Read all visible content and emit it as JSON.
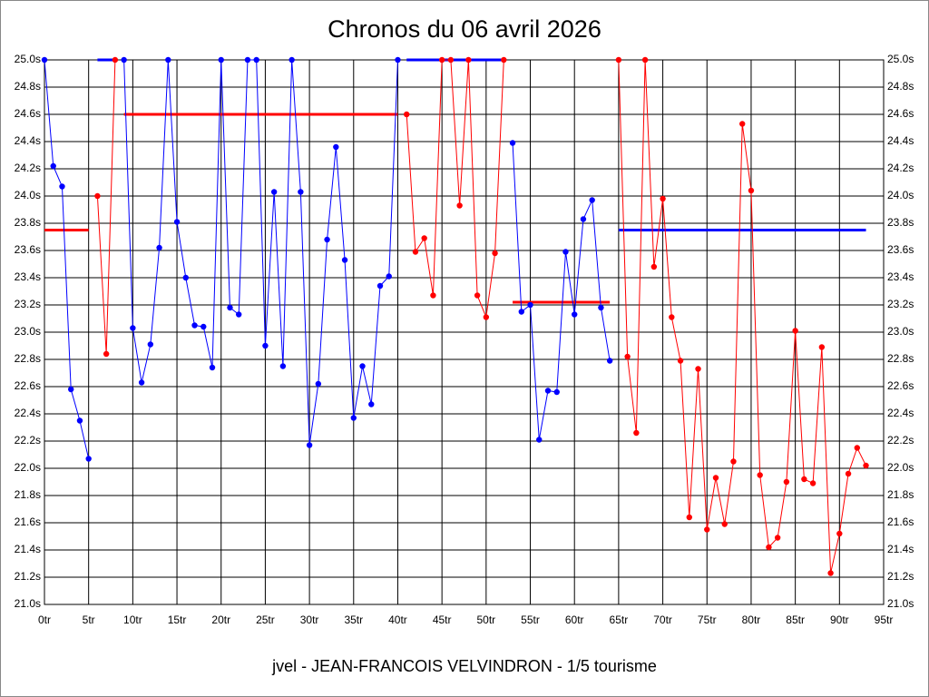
{
  "chart_data": {
    "type": "line",
    "title": "Chronos du 06 avril 2026",
    "footer": "jvel - JEAN-FRANCOIS VELVINDRON - 1/5 tourisme",
    "xlim": [
      0,
      95
    ],
    "ylim": [
      21,
      25
    ],
    "xticks": [
      {
        "value": 0,
        "label": "0tr"
      },
      {
        "value": 5,
        "label": "5tr"
      },
      {
        "value": 10,
        "label": "10tr"
      },
      {
        "value": 15,
        "label": "15tr"
      },
      {
        "value": 20,
        "label": "20tr"
      },
      {
        "value": 25,
        "label": "25tr"
      },
      {
        "value": 30,
        "label": "30tr"
      },
      {
        "value": 35,
        "label": "35tr"
      },
      {
        "value": 40,
        "label": "40tr"
      },
      {
        "value": 45,
        "label": "45tr"
      },
      {
        "value": 50,
        "label": "50tr"
      },
      {
        "value": 55,
        "label": "55tr"
      },
      {
        "value": 60,
        "label": "60tr"
      },
      {
        "value": 65,
        "label": "65tr"
      },
      {
        "value": 70,
        "label": "70tr"
      },
      {
        "value": 75,
        "label": "75tr"
      },
      {
        "value": 80,
        "label": "80tr"
      },
      {
        "value": 85,
        "label": "85tr"
      },
      {
        "value": 90,
        "label": "90tr"
      },
      {
        "value": 95,
        "label": "95tr"
      }
    ],
    "yticks": [
      {
        "value": 21,
        "label": "21.0s"
      },
      {
        "value": 21.2,
        "label": "21.2s"
      },
      {
        "value": 21.4,
        "label": "21.4s"
      },
      {
        "value": 21.6,
        "label": "21.6s"
      },
      {
        "value": 21.8,
        "label": "21.8s"
      },
      {
        "value": 22,
        "label": "22.0s"
      },
      {
        "value": 22.2,
        "label": "22.2s"
      },
      {
        "value": 22.4,
        "label": "22.4s"
      },
      {
        "value": 22.6,
        "label": "22.6s"
      },
      {
        "value": 22.8,
        "label": "22.8s"
      },
      {
        "value": 23,
        "label": "23.0s"
      },
      {
        "value": 23.2,
        "label": "23.2s"
      },
      {
        "value": 23.4,
        "label": "23.4s"
      },
      {
        "value": 23.6,
        "label": "23.6s"
      },
      {
        "value": 23.8,
        "label": "23.8s"
      },
      {
        "value": 24,
        "label": "24.0s"
      },
      {
        "value": 24.2,
        "label": "24.2s"
      },
      {
        "value": 24.4,
        "label": "24.4s"
      },
      {
        "value": 24.6,
        "label": "24.6s"
      },
      {
        "value": 24.8,
        "label": "24.8s"
      },
      {
        "value": 25,
        "label": "25.0s"
      }
    ],
    "grid": true,
    "series": [
      {
        "color": "#0000ff",
        "x": [
          0,
          1,
          2,
          3,
          4,
          5
        ],
        "values": [
          25,
          24.22,
          24.07,
          22.58,
          22.35,
          22.07
        ]
      },
      {
        "color": "#ff0000",
        "x": [
          6,
          7,
          8
        ],
        "values": [
          24,
          22.84,
          25
        ]
      },
      {
        "color": "#0000ff",
        "x": [
          9,
          10,
          11,
          12,
          13,
          14,
          15,
          16,
          17,
          18,
          19,
          20,
          21,
          22,
          23,
          24,
          25,
          26,
          27,
          28,
          29,
          30,
          31,
          32,
          33,
          34,
          35,
          36,
          37,
          38,
          39,
          40
        ],
        "values": [
          25,
          23.03,
          22.63,
          22.91,
          23.62,
          25,
          23.81,
          23.4,
          23.05,
          23.04,
          22.74,
          25,
          23.18,
          23.13,
          25,
          25,
          22.9,
          24.03,
          22.75,
          25,
          24.03,
          22.17,
          22.62,
          23.68,
          24.36,
          23.53,
          22.37,
          22.75,
          22.47,
          23.34,
          23.41,
          25
        ]
      },
      {
        "color": "#ff0000",
        "x": [
          41,
          42,
          43,
          44,
          45,
          46,
          47,
          48,
          49,
          50,
          51,
          52
        ],
        "values": [
          24.6,
          23.59,
          23.69,
          23.27,
          25,
          25,
          23.93,
          25,
          23.27,
          23.11,
          23.58,
          25
        ]
      },
      {
        "color": "#0000ff",
        "x": [
          53,
          54,
          55,
          56,
          57,
          58,
          59,
          60,
          61,
          62,
          63,
          64
        ],
        "values": [
          24.39,
          23.15,
          23.2,
          22.21,
          22.57,
          22.56,
          23.59,
          23.13,
          23.83,
          23.97,
          23.18,
          22.79
        ]
      },
      {
        "color": "#ff0000",
        "x": [
          65,
          66,
          67,
          68,
          69,
          70,
          71,
          72,
          73,
          74,
          75,
          76,
          77,
          78,
          79,
          80,
          81,
          82,
          83,
          84,
          85,
          86,
          87,
          88,
          89,
          90,
          91,
          92,
          93
        ],
        "values": [
          25,
          22.82,
          22.26,
          25,
          23.48,
          23.98,
          23.11,
          22.79,
          21.64,
          22.73,
          21.55,
          21.93,
          21.59,
          22.05,
          24.53,
          24.04,
          21.95,
          21.42,
          21.49,
          21.9,
          23.01,
          21.92,
          21.89,
          22.89,
          21.23,
          21.52,
          21.96,
          22.15,
          22.02
        ]
      }
    ],
    "reference_lines": [
      {
        "color": "#ff0000",
        "x": [
          0,
          5
        ],
        "value": 23.75
      },
      {
        "color": "#0000ff",
        "x": [
          6,
          8
        ],
        "value": 25
      },
      {
        "color": "#ff0000",
        "x": [
          9,
          40
        ],
        "value": 24.6
      },
      {
        "color": "#0000ff",
        "x": [
          41,
          52
        ],
        "value": 25
      },
      {
        "color": "#ff0000",
        "x": [
          53,
          64
        ],
        "value": 23.22
      },
      {
        "color": "#0000ff",
        "x": [
          65,
          93
        ],
        "value": 23.75
      }
    ]
  }
}
